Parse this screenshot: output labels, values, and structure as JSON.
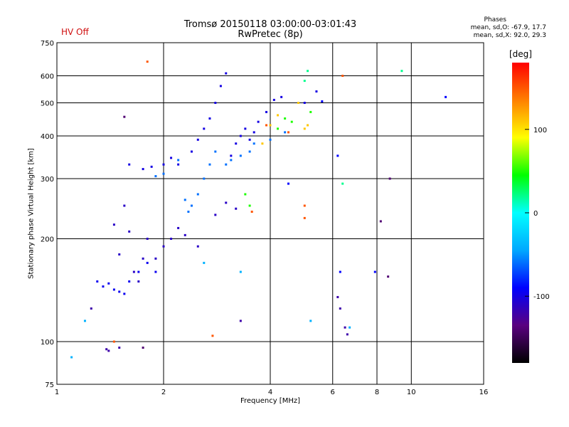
{
  "chart_data": {
    "type": "scatter",
    "title": "Tromsø 20150118 03:00:00-03:01:43",
    "subtitle": "RwPretec (8p)",
    "status": "HV Off",
    "xlabel": "Frequency [MHz]",
    "ylabel": "Stationary phase Virtual Height [km]",
    "x_scale": "log",
    "y_scale": "log",
    "xlim": [
      1,
      16
    ],
    "ylim": [
      75,
      750
    ],
    "x_ticks": [
      "1",
      "2",
      "4",
      "6",
      "8",
      "10",
      "16"
    ],
    "y_ticks": [
      "75",
      "100",
      "200",
      "300",
      "400",
      "500",
      "600",
      "750"
    ],
    "grid": true,
    "phases_title": "Phases",
    "phase_stats_o": "mean, sd,O:  -67.9, 17.7",
    "phase_stats_x": "mean, sd,X:   92.0, 29.3",
    "colorbar": {
      "unit": "[deg]",
      "ticks": [
        "100",
        "0",
        "-100"
      ],
      "tick_values": [
        100,
        0,
        -100
      ],
      "range": [
        -180,
        180
      ],
      "colormap": [
        "#000000",
        "#5a0080",
        "#0000ff",
        "#00a8ff",
        "#00ffff",
        "#00ff00",
        "#ffff00",
        "#ff8000",
        "#ff0000"
      ]
    },
    "series": [
      {
        "phase": -100,
        "points": [
          [
            1.6,
            330
          ],
          [
            1.75,
            320
          ],
          [
            1.85,
            325
          ],
          [
            2.0,
            330
          ],
          [
            2.1,
            345
          ],
          [
            2.2,
            330
          ],
          [
            2.4,
            360
          ],
          [
            2.5,
            390
          ],
          [
            2.6,
            420
          ],
          [
            2.7,
            450
          ],
          [
            2.8,
            500
          ],
          [
            2.9,
            560
          ],
          [
            3.0,
            610
          ],
          [
            3.1,
            350
          ],
          [
            3.2,
            380
          ],
          [
            3.3,
            400
          ],
          [
            3.4,
            420
          ],
          [
            3.5,
            390
          ],
          [
            3.6,
            410
          ],
          [
            3.7,
            440
          ],
          [
            3.9,
            470
          ],
          [
            4.1,
            510
          ],
          [
            4.3,
            520
          ],
          [
            5.0,
            500
          ],
          [
            5.4,
            540
          ]
        ]
      },
      {
        "phase": -110,
        "points": [
          [
            1.45,
            220
          ],
          [
            1.5,
            180
          ],
          [
            1.55,
            250
          ],
          [
            1.6,
            210
          ],
          [
            1.65,
            160
          ],
          [
            1.7,
            150
          ],
          [
            1.75,
            175
          ],
          [
            1.8,
            200
          ],
          [
            1.9,
            175
          ],
          [
            2.0,
            190
          ],
          [
            2.1,
            200
          ],
          [
            2.2,
            215
          ],
          [
            2.3,
            205
          ],
          [
            2.5,
            190
          ],
          [
            2.8,
            235
          ],
          [
            3.0,
            255
          ],
          [
            3.2,
            245
          ]
        ]
      },
      {
        "phase": -95,
        "points": [
          [
            1.3,
            150
          ],
          [
            1.35,
            145
          ],
          [
            1.4,
            148
          ],
          [
            1.45,
            142
          ],
          [
            1.5,
            140
          ],
          [
            1.55,
            138
          ],
          [
            1.6,
            150
          ],
          [
            1.7,
            160
          ],
          [
            1.8,
            170
          ],
          [
            1.9,
            160
          ]
        ]
      },
      {
        "phase": -120,
        "points": [
          [
            1.25,
            125
          ],
          [
            1.38,
            95
          ],
          [
            1.4,
            94
          ],
          [
            1.5,
            96
          ],
          [
            3.3,
            115
          ],
          [
            6.2,
            135
          ],
          [
            6.3,
            125
          ],
          [
            6.5,
            110
          ],
          [
            6.6,
            105
          ]
        ]
      },
      {
        "phase": -60,
        "points": [
          [
            2.3,
            260
          ],
          [
            2.35,
            240
          ],
          [
            2.4,
            250
          ],
          [
            2.5,
            270
          ],
          [
            2.6,
            300
          ],
          [
            2.7,
            330
          ],
          [
            2.8,
            360
          ],
          [
            3.0,
            330
          ],
          [
            3.1,
            340
          ],
          [
            3.3,
            350
          ],
          [
            3.5,
            360
          ],
          [
            3.6,
            380
          ],
          [
            4.0,
            390
          ],
          [
            4.4,
            410
          ],
          [
            2.2,
            340
          ],
          [
            2.0,
            310
          ],
          [
            1.9,
            305
          ]
        ]
      },
      {
        "phase": 50,
        "points": [
          [
            3.4,
            270
          ],
          [
            3.5,
            250
          ],
          [
            4.2,
            420
          ],
          [
            4.4,
            450
          ],
          [
            4.6,
            440
          ],
          [
            5.2,
            470
          ]
        ]
      },
      {
        "phase": 110,
        "points": [
          [
            3.8,
            380
          ],
          [
            4.0,
            430
          ],
          [
            4.2,
            460
          ],
          [
            5.0,
            420
          ],
          [
            5.1,
            430
          ],
          [
            4.8,
            500
          ]
        ]
      },
      {
        "phase": 150,
        "points": [
          [
            1.8,
            660
          ],
          [
            3.9,
            430
          ],
          [
            4.5,
            410
          ],
          [
            5.0,
            250
          ],
          [
            5.0,
            230
          ],
          [
            6.4,
            600
          ],
          [
            1.45,
            100
          ],
          [
            2.75,
            104
          ],
          [
            3.55,
            240
          ]
        ]
      },
      {
        "phase": -140,
        "points": [
          [
            1.75,
            96
          ],
          [
            1.55,
            455
          ],
          [
            8.2,
            225
          ],
          [
            8.7,
            300
          ],
          [
            8.6,
            155
          ]
        ]
      },
      {
        "phase": -90,
        "points": [
          [
            7.9,
            160
          ],
          [
            6.2,
            350
          ],
          [
            6.3,
            160
          ],
          [
            12.5,
            520
          ],
          [
            4.5,
            290
          ],
          [
            5.6,
            505
          ]
        ]
      },
      {
        "phase": -40,
        "points": [
          [
            1.1,
            90
          ],
          [
            1.2,
            115
          ],
          [
            6.7,
            110
          ],
          [
            5.2,
            115
          ],
          [
            3.3,
            160
          ],
          [
            2.6,
            170
          ]
        ]
      },
      {
        "phase": 20,
        "points": [
          [
            6.4,
            290
          ],
          [
            9.4,
            620
          ],
          [
            5.0,
            580
          ],
          [
            5.1,
            620
          ]
        ]
      }
    ]
  }
}
